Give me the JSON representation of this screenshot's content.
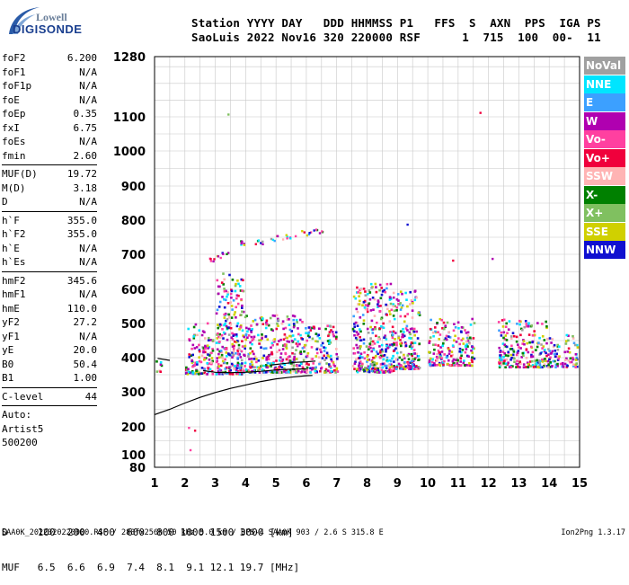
{
  "logo": {
    "line1": "Lowell",
    "line2": "DIGISONDE"
  },
  "header": {
    "labels": "Station YYYY DAY   DDD HHMMSS P1   FFS  S  AXN  PPS  IGA PS",
    "values": "SaoLuis 2022 Nov16 320 220000 RSF      1  715  100  00-  11"
  },
  "params": {
    "group1": [
      {
        "name": "foF2",
        "value": "6.200"
      },
      {
        "name": "foF1",
        "value": "N/A"
      },
      {
        "name": "foF1p",
        "value": "N/A"
      },
      {
        "name": "foE",
        "value": "N/A"
      },
      {
        "name": "foEp",
        "value": "0.35"
      },
      {
        "name": "fxI",
        "value": "6.75"
      },
      {
        "name": "foEs",
        "value": "N/A"
      },
      {
        "name": "fmin",
        "value": "2.60"
      }
    ],
    "group2": [
      {
        "name": "MUF(D)",
        "value": "19.72"
      },
      {
        "name": "M(D)",
        "value": "3.18"
      },
      {
        "name": "D",
        "value": "N/A"
      }
    ],
    "group3": [
      {
        "name": "h`F",
        "value": "355.0"
      },
      {
        "name": "h`F2",
        "value": "355.0"
      },
      {
        "name": "h`E",
        "value": "N/A"
      },
      {
        "name": "h`Es",
        "value": "N/A"
      }
    ],
    "group4": [
      {
        "name": "hmF2",
        "value": "345.6"
      },
      {
        "name": "hmF1",
        "value": "N/A"
      },
      {
        "name": "hmE",
        "value": "110.0"
      },
      {
        "name": "yF2",
        "value": "27.2"
      },
      {
        "name": "yF1",
        "value": "N/A"
      },
      {
        "name": "yE",
        "value": "20.0"
      },
      {
        "name": "B0",
        "value": "50.4"
      },
      {
        "name": "B1",
        "value": "1.00"
      }
    ],
    "clevel": {
      "name": "C-level",
      "value": "44"
    },
    "auto": [
      "Auto:",
      "Artist5",
      "500200"
    ]
  },
  "legend": [
    {
      "label": "NoVal",
      "color": "#a0a0a0"
    },
    {
      "label": "NNE",
      "color": "#00e5ff"
    },
    {
      "label": "E",
      "color": "#3ca0ff"
    },
    {
      "label": "W",
      "color": "#b000b0"
    },
    {
      "label": "Vo-",
      "color": "#ff40a0"
    },
    {
      "label": "Vo+",
      "color": "#f0003c"
    },
    {
      "label": "SSW",
      "color": "#ffb4b4"
    },
    {
      "label": "X-",
      "color": "#008000"
    },
    {
      "label": "X+",
      "color": "#80c060"
    },
    {
      "label": "SSE",
      "color": "#d0d000"
    },
    {
      "label": "NNW",
      "color": "#1010d0"
    }
  ],
  "muf_table": {
    "row1": "D     100  200  400  600  800 1000 1500 3000 [km]",
    "row2": "MUF   6.5  6.6  6.9  7.4  8.1  9.1 12.1 19.7 [MHz]"
  },
  "footer": "SAA0K_2022320220000.RSF / 280fx256h 50 kHz 5.0 km / DPS-4 SAA0K 903 / 2.6 S 315.8 E",
  "footer_version": "Ion2Png 1.3.17",
  "chart_data": {
    "type": "scatter",
    "xlabel": "",
    "ylabel": "",
    "xlim": [
      1,
      15
    ],
    "ylim": [
      80,
      1280
    ],
    "xticks": [
      1,
      2,
      3,
      4,
      5,
      6,
      7,
      8,
      9,
      10,
      11,
      12,
      13,
      14,
      15
    ],
    "yticks": [
      80,
      100,
      200,
      300,
      400,
      500,
      600,
      700,
      800,
      900,
      1000,
      1100,
      1280
    ],
    "grid": true,
    "trace_curves": [
      {
        "x": [
          1.0,
          1.5,
          2.0,
          2.5,
          3.0,
          3.5,
          4.0,
          4.5,
          5.0,
          5.5,
          6.0,
          6.2
        ],
        "y": [
          235,
          250,
          268,
          284,
          298,
          310,
          320,
          330,
          338,
          343,
          347,
          348
        ]
      },
      {
        "x": [
          2.6,
          3.0,
          3.5,
          4.0,
          4.5,
          5.0,
          5.5,
          6.0
        ],
        "y": [
          362,
          357,
          356,
          357,
          360,
          364,
          366,
          367
        ]
      },
      {
        "x": [
          1.1,
          1.5
        ],
        "y": [
          398,
          392
        ]
      },
      {
        "x": [
          4.8,
          5.2,
          5.6,
          6.0,
          6.3
        ],
        "y": [
          378,
          382,
          386,
          388,
          390
        ]
      }
    ],
    "echo_clusters": [
      {
        "x_from": 1.0,
        "x_to": 1.2,
        "y_from": 360,
        "y_to": 400
      },
      {
        "x_from": 2.0,
        "x_to": 2.9,
        "y_from": 355,
        "y_to": 505
      },
      {
        "x_from": 3.0,
        "x_to": 3.9,
        "y_from": 355,
        "y_to": 650
      },
      {
        "x_from": 3.9,
        "x_to": 5.9,
        "y_from": 360,
        "y_to": 530
      },
      {
        "x_from": 5.9,
        "x_to": 7.0,
        "y_from": 360,
        "y_to": 500
      },
      {
        "x_from": 7.5,
        "x_to": 8.9,
        "y_from": 360,
        "y_to": 620
      },
      {
        "x_from": 8.9,
        "x_to": 9.7,
        "y_from": 370,
        "y_to": 600
      },
      {
        "x_from": 10.0,
        "x_to": 11.5,
        "y_from": 380,
        "y_to": 520
      },
      {
        "x_from": 12.3,
        "x_to": 13.9,
        "y_from": 375,
        "y_to": 520
      },
      {
        "x_from": 13.9,
        "x_to": 14.9,
        "y_from": 375,
        "y_to": 470
      }
    ],
    "o_trace_upper": [
      {
        "x": 3.0,
        "y": 690
      },
      {
        "x": 3.2,
        "y": 700
      },
      {
        "x": 4.0,
        "y": 735
      },
      {
        "x": 4.5,
        "y": 740
      },
      {
        "x": 5.0,
        "y": 750
      },
      {
        "x": 5.5,
        "y": 757
      },
      {
        "x": 6.0,
        "y": 765
      },
      {
        "x": 6.3,
        "y": 770
      }
    ],
    "sparse_points": [
      {
        "x": 2.1,
        "y": 200
      },
      {
        "x": 2.3,
        "y": 190
      },
      {
        "x": 2.15,
        "y": 120
      },
      {
        "x": 11.7,
        "y": 1115
      },
      {
        "x": 3.4,
        "y": 1110
      },
      {
        "x": 12.1,
        "y": 690
      },
      {
        "x": 10.8,
        "y": 685
      },
      {
        "x": 9.3,
        "y": 790
      }
    ]
  }
}
